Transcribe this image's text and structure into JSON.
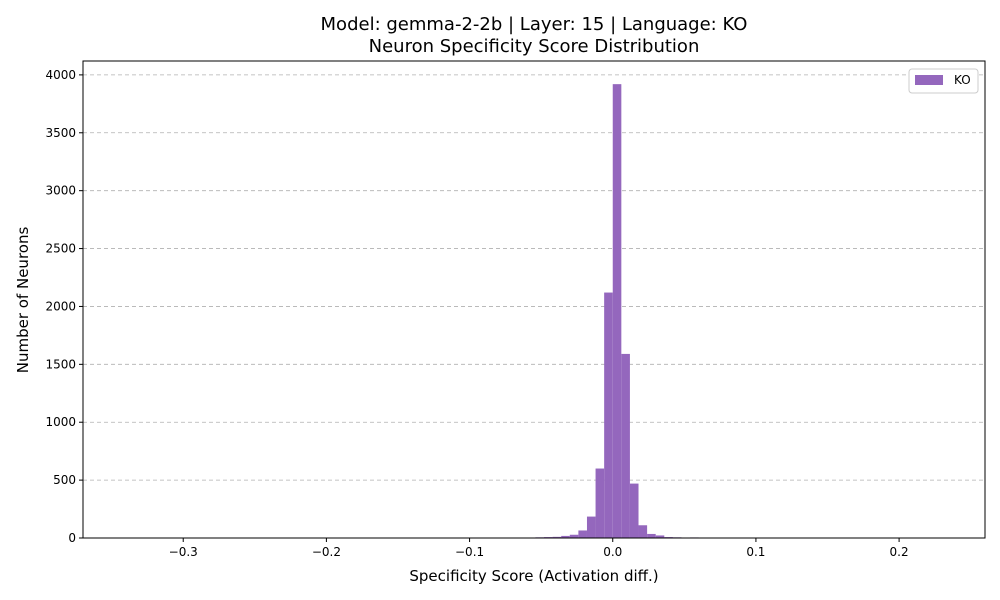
{
  "chart_data": {
    "type": "bar",
    "title": "Model: gemma-2-2b | Layer: 15 | Language: KO",
    "subtitle": "Neuron Specificity Score Distribution",
    "xlabel": "Specificity Score (Activation diff.)",
    "ylabel": "Number of Neurons",
    "xlim": [
      -0.37,
      0.26
    ],
    "ylim": [
      0,
      4120
    ],
    "xticks": [
      -0.3,
      -0.2,
      -0.1,
      0.0,
      0.1,
      0.2
    ],
    "xtick_labels": [
      "−0.3",
      "−0.2",
      "−0.1",
      "0.0",
      "0.1",
      "0.2"
    ],
    "yticks": [
      0,
      500,
      1000,
      1500,
      2000,
      2500,
      3000,
      3500,
      4000
    ],
    "ytick_labels": [
      "0",
      "500",
      "1000",
      "1500",
      "2000",
      "2500",
      "3000",
      "3500",
      "4000"
    ],
    "grid": "y-dashed",
    "legend_position": "top-right",
    "series": [
      {
        "name": "KO",
        "color": "#9467bd",
        "bin_width": 0.006,
        "bin_left_edges": [
          -0.066,
          -0.06,
          -0.054,
          -0.048,
          -0.042,
          -0.036,
          -0.03,
          -0.024,
          -0.018,
          -0.012,
          -0.006,
          0.0,
          0.006,
          0.012,
          0.018,
          0.024,
          0.03,
          0.036,
          0.042,
          0.048,
          0.054,
          0.06
        ],
        "values": [
          4,
          2,
          6,
          8,
          10,
          18,
          28,
          65,
          185,
          600,
          2120,
          3920,
          1590,
          470,
          110,
          35,
          22,
          8,
          6,
          3,
          5,
          3
        ]
      }
    ]
  }
}
